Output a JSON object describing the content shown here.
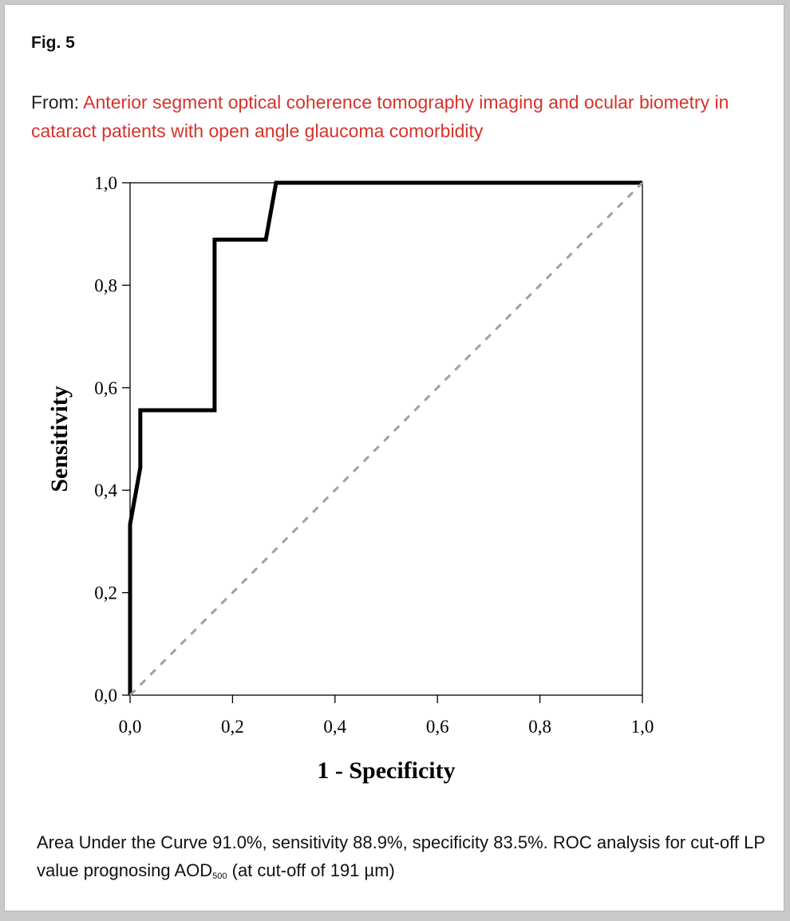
{
  "figure": {
    "label": "Fig. 5",
    "from_prefix": "From: ",
    "from_title": "Anterior segment optical coherence tomography imaging and ocular biometry in cataract patients with open angle glaucoma comorbidity"
  },
  "caption": {
    "text_before_sub": "Area Under the Curve 91.0%, sensitivity 88.9%, specificity 83.5%. ROC analysis for cut-off LP value prognosing AOD",
    "sub": "500",
    "text_after_sub": " (at cut-off of 191 µm)"
  },
  "colors": {
    "title_red": "#d6332b",
    "curve": "#000000",
    "reference_line": "#a0a0a0"
  },
  "chart_data": {
    "type": "line",
    "xlabel": "1 - Specificity",
    "ylabel": "Sensitivity",
    "xlim": [
      0,
      1
    ],
    "ylim": [
      0,
      1
    ],
    "x_ticks": [
      "0,0",
      "0,2",
      "0,4",
      "0,6",
      "0,8",
      "1,0"
    ],
    "y_ticks": [
      "0,0",
      "0,2",
      "0,4",
      "0,6",
      "0,8",
      "1,0"
    ],
    "grid": false,
    "series": [
      {
        "style": "solid",
        "x": [
          0.0,
          0.0,
          0.02,
          0.02,
          0.165,
          0.165,
          0.265,
          0.285,
          1.0
        ],
        "y": [
          0.0,
          0.333,
          0.444,
          0.556,
          0.556,
          0.889,
          0.889,
          1.0,
          1.0
        ]
      },
      {
        "style": "dashed",
        "x": [
          0.0,
          1.0
        ],
        "y": [
          0.0,
          1.0
        ]
      }
    ]
  }
}
